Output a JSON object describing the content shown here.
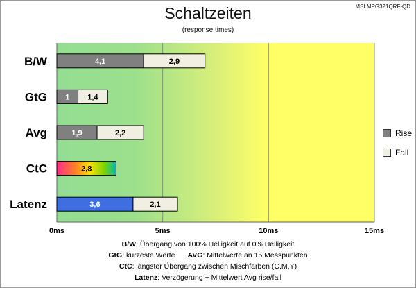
{
  "chart_data": {
    "type": "bar",
    "orientation": "horizontal",
    "stacked": true,
    "title": "Schaltzeiten",
    "subtitle": "(response times)",
    "model": "MSI MPG321QRF-QD",
    "categories": [
      "B/W",
      "GtG",
      "Avg",
      "CtC",
      "Latenz"
    ],
    "series": [
      {
        "name": "Rise",
        "values": [
          4.1,
          1.0,
          1.9,
          2.8,
          3.6
        ],
        "labels": [
          "4,1",
          "1",
          "1,9",
          "2,8",
          "3,6"
        ]
      },
      {
        "name": "Fall",
        "values": [
          2.9,
          1.4,
          2.2,
          null,
          2.1
        ],
        "labels": [
          "2,9",
          "1,4",
          "2,2",
          "",
          "2,1"
        ]
      }
    ],
    "xlim": [
      0,
      15
    ],
    "xticks": [
      0,
      5,
      10,
      15
    ],
    "xtick_labels": [
      "0ms",
      "5ms",
      "10ms",
      "15ms"
    ],
    "grid": "vertical",
    "legend": "right",
    "colors": {
      "rise": "#808080",
      "fall": "#f1eee2",
      "latenz": "#3e6ee0",
      "ctc_gradient": [
        "#ff2f8a",
        "#ff7a2a",
        "#ffe000",
        "#7dd400",
        "#00b8b0"
      ],
      "bg_green": "#93dd93",
      "bg_yellow": "#ffff66"
    }
  },
  "notes": {
    "bw_label": "B/W",
    "bw_text": ":  Übergang von 100% Helligkeit auf 0% Helligkeit",
    "gtg_label": "GtG",
    "gtg_text": ": kürzeste  Werte",
    "avg_label": "AVG",
    "avg_text": ": Mittelwerte  an 15 Messpunkten",
    "ctc_label": "CtC",
    "ctc_text": ": längster Übergang  zwischen Mischfarben  (C,M,Y)",
    "latenz_label": "Latenz",
    "latenz_text": ": Verzögerung  + Mittelwert Avg rise/fall"
  }
}
